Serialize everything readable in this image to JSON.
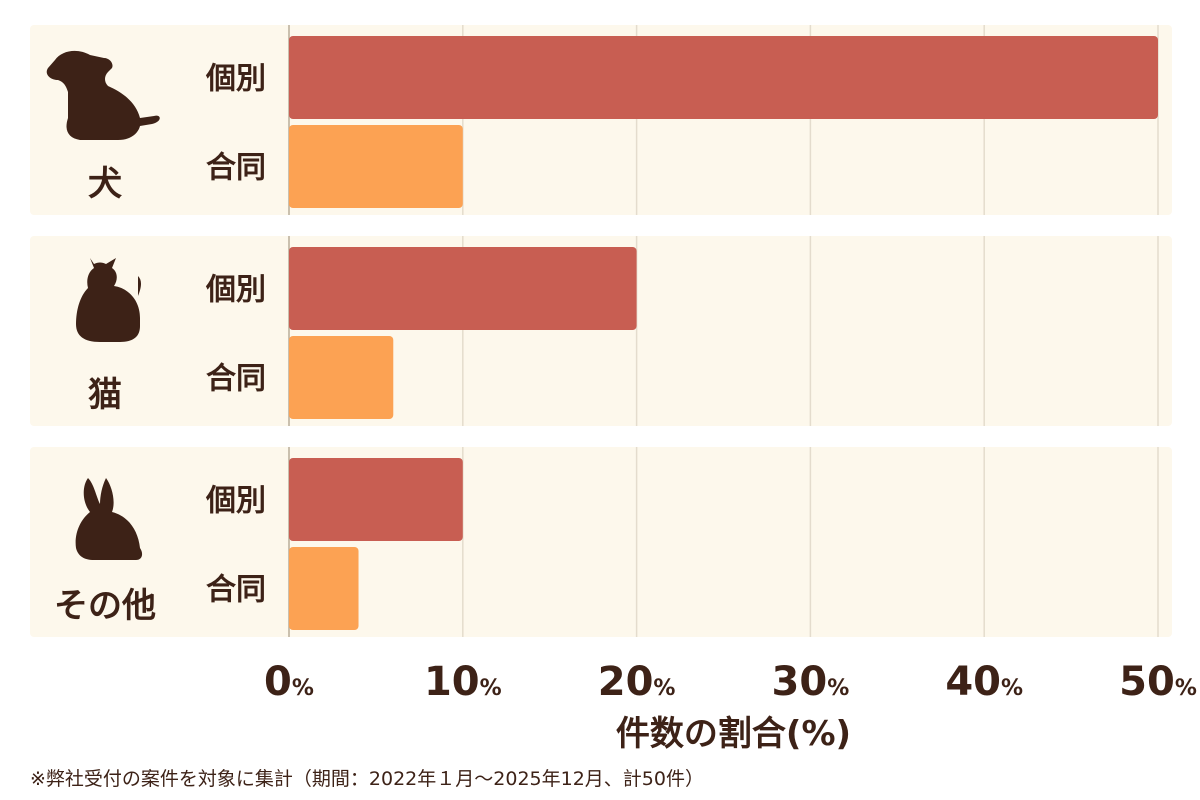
{
  "chart_data": {
    "type": "bar",
    "orientation": "horizontal",
    "xlabel": "件数の割合(%)",
    "xlim": [
      0,
      50
    ],
    "x_ticks": [
      {
        "value": 0,
        "number": "0",
        "unit": "%"
      },
      {
        "value": 10,
        "number": "10",
        "unit": "%"
      },
      {
        "value": 20,
        "number": "20",
        "unit": "%"
      },
      {
        "value": 30,
        "number": "30",
        "unit": "%"
      },
      {
        "value": 40,
        "number": "40",
        "unit": "%"
      },
      {
        "value": 50,
        "number": "50",
        "unit": "%"
      }
    ],
    "grid": true,
    "groups": [
      {
        "label": "犬",
        "icon": "dog-icon",
        "bars": [
          {
            "label": "個別",
            "value": 50
          },
          {
            "label": "合同",
            "value": 10
          }
        ]
      },
      {
        "label": "猫",
        "icon": "cat-icon",
        "bars": [
          {
            "label": "個別",
            "value": 20
          },
          {
            "label": "合同",
            "value": 6
          }
        ]
      },
      {
        "label": "その他",
        "icon": "rabbit-icon",
        "bars": [
          {
            "label": "個別",
            "value": 10
          },
          {
            "label": "合同",
            "value": 4
          }
        ]
      }
    ],
    "colors": {
      "個別": "#c85e52",
      "合同": "#fca253",
      "panel": "#fdf8ec",
      "text": "#3d2217",
      "grid": "#e4dccd"
    }
  },
  "footnote": "※弊社受付の案件を対象に集計（期間：2022年１月〜2025年12月、計50件）"
}
